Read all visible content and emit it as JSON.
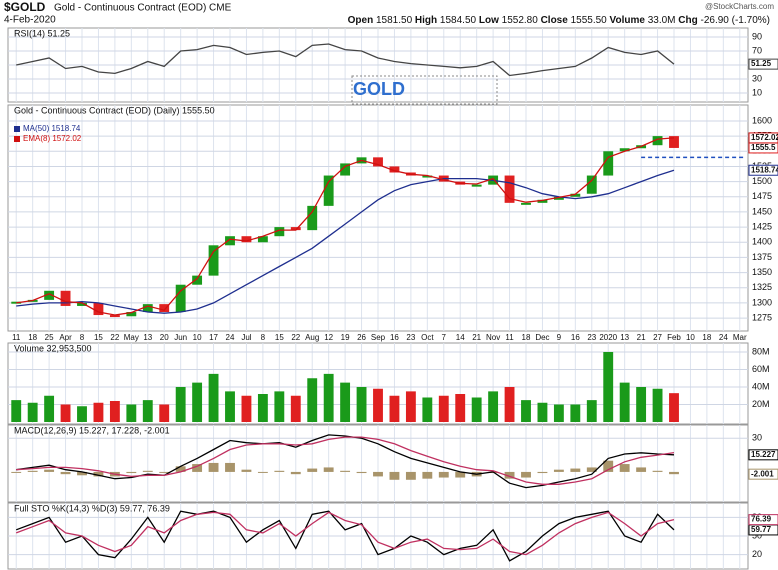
{
  "header": {
    "symbol": "$GOLD",
    "name": "Gold - Continuous Contract (EOD) CME",
    "date": "4-Feb-2020",
    "credit": "@StockCharts.com",
    "quote": [
      {
        "label": "Open",
        "value": "1581.50"
      },
      {
        "label": "High",
        "value": "1584.50"
      },
      {
        "label": "Low",
        "value": "1552.80"
      },
      {
        "label": "Close",
        "value": "1555.50"
      },
      {
        "label": "Volume",
        "value": "33.0M"
      },
      {
        "label": "Chg",
        "value": "-26.90 (-1.70%)"
      }
    ]
  },
  "annotation": "GOLD",
  "chart_data": [
    {
      "type": "line",
      "label": "RSI(14) 51.25",
      "ylim": [
        0,
        100
      ],
      "yticks": [
        90,
        70,
        50,
        30,
        10
      ],
      "grid": true,
      "series": [
        {
          "color": "#444444",
          "box": true,
          "values": [
            50,
            55,
            60,
            45,
            48,
            40,
            38,
            45,
            55,
            48,
            70,
            72,
            78,
            75,
            65,
            68,
            70,
            62,
            78,
            80,
            72,
            70,
            60,
            55,
            52,
            50,
            48,
            46,
            48,
            55,
            35,
            38,
            42,
            45,
            48,
            60,
            75,
            68,
            65,
            70,
            51.25,
            null,
            null,
            null,
            null
          ]
        }
      ]
    },
    {
      "type": "line",
      "label": "Gold - Continuous Contract (EOD) (Daily) 1555.50",
      "ylim": [
        1257,
        1623
      ],
      "grid": true,
      "hline": 1540,
      "yticks": [
        1275,
        1300,
        1325,
        1350,
        1375,
        1400,
        1425,
        1450,
        1475,
        1500,
        1525,
        1550,
        1575,
        1600
      ],
      "categories": [
        "11",
        "18",
        "25",
        "Apr",
        "8",
        "15",
        "22",
        "May",
        "13",
        "20",
        "Jun",
        "10",
        "17",
        "24",
        "Jul",
        "8",
        "15",
        "22",
        "Aug",
        "12",
        "19",
        "26",
        "Sep",
        "16",
        "23",
        "Oct",
        "7",
        "14",
        "21",
        "Nov",
        "11",
        "18",
        "Dec",
        "9",
        "16",
        "23",
        "2020",
        "13",
        "21",
        "27",
        "Feb",
        "10",
        "18",
        "24",
        "Mar"
      ],
      "series": [
        {
          "style": "candle",
          "up_color": "#1a9a1a",
          "down_color": "#e02020",
          "box": true,
          "values": [
            1302,
            1305,
            1320,
            1295,
            1300,
            1280,
            1278,
            1285,
            1298,
            1285,
            1330,
            1345,
            1395,
            1410,
            1400,
            1410,
            1425,
            1420,
            1460,
            1510,
            1530,
            1540,
            1525,
            1515,
            1510,
            1510,
            1500,
            1495,
            1495,
            1510,
            1465,
            1465,
            1470,
            1475,
            1480,
            1510,
            1550,
            1555,
            1560,
            1575,
            1555.5,
            null,
            null,
            null,
            null
          ]
        },
        {
          "name": "MA(50) 1518.74",
          "color": "#1f2f8f",
          "box": true,
          "values": [
            1295,
            1298,
            1300,
            1300,
            1302,
            1300,
            1295,
            1290,
            1285,
            1283,
            1285,
            1290,
            1300,
            1315,
            1330,
            1345,
            1360,
            1375,
            1390,
            1410,
            1430,
            1450,
            1470,
            1485,
            1495,
            1500,
            1505,
            1505,
            1505,
            1502,
            1498,
            1490,
            1480,
            1475,
            1472,
            1475,
            1480,
            1490,
            1500,
            1510,
            1518.74,
            null,
            null,
            null,
            null
          ]
        },
        {
          "name": "EMA(8) 1572.02",
          "color": "#d01010",
          "box": true,
          "values": [
            1300,
            1304,
            1315,
            1302,
            1300,
            1285,
            1280,
            1284,
            1295,
            1288,
            1320,
            1340,
            1385,
            1405,
            1402,
            1410,
            1420,
            1420,
            1450,
            1500,
            1525,
            1535,
            1528,
            1518,
            1512,
            1510,
            1503,
            1497,
            1496,
            1505,
            1472,
            1466,
            1469,
            1474,
            1479,
            1502,
            1540,
            1550,
            1558,
            1570,
            1572.02,
            null,
            null,
            null,
            null
          ]
        }
      ]
    },
    {
      "type": "bar",
      "label": "Volume 32,953,500",
      "ylim": [
        0,
        88000000
      ],
      "grid": true,
      "yticks": [
        {
          "value": 20000000,
          "label": "20M"
        },
        {
          "value": 40000000,
          "label": "40M"
        },
        {
          "value": 60000000,
          "label": "60M"
        },
        {
          "value": 80000000,
          "label": "80M"
        }
      ],
      "series": [
        {
          "style": "bar",
          "up_color": "#1a9a1a",
          "down_color": "#e02020",
          "values": [
            25000000,
            22000000,
            30000000,
            20000000,
            18000000,
            22000000,
            24000000,
            20000000,
            25000000,
            20000000,
            40000000,
            45000000,
            55000000,
            35000000,
            30000000,
            32000000,
            35000000,
            30000000,
            50000000,
            55000000,
            45000000,
            40000000,
            38000000,
            30000000,
            35000000,
            28000000,
            30000000,
            32000000,
            28000000,
            35000000,
            40000000,
            25000000,
            22000000,
            20000000,
            20000000,
            25000000,
            80000000,
            45000000,
            40000000,
            38000000,
            32953500,
            null,
            null,
            null,
            null
          ]
        }
      ]
    },
    {
      "type": "line",
      "label": "MACD(12,26,9) 15.227, 17.228, -2.001",
      "ylim": [
        -25,
        40
      ],
      "yticks": [
        30
      ],
      "grid": true,
      "series": [
        {
          "style": "bar",
          "color": "#a8946a",
          "box": true,
          "values": [
            0,
            1,
            2,
            -2,
            -3,
            -4,
            -4,
            -1,
            1,
            0,
            5,
            7,
            8,
            8,
            2,
            0,
            1,
            -2,
            3,
            4,
            1,
            -1,
            -4,
            -7,
            -7,
            -6,
            -5,
            -5,
            -4,
            -1,
            -6,
            -5,
            -1,
            2,
            3,
            4,
            10,
            7,
            4,
            1,
            -2.001,
            null,
            null,
            null,
            null
          ]
        },
        {
          "color": "#000000",
          "box": true,
          "values": [
            2,
            4,
            6,
            2,
            0,
            -3,
            -6,
            -5,
            -2,
            -3,
            5,
            12,
            20,
            28,
            26,
            25,
            26,
            22,
            28,
            33,
            32,
            30,
            25,
            18,
            12,
            8,
            4,
            0,
            -2,
            0,
            -10,
            -14,
            -12,
            -9,
            -6,
            -2,
            12,
            16,
            17,
            16,
            15.227,
            null,
            null,
            null,
            null
          ]
        },
        {
          "color": "#c03060",
          "values": [
            2,
            3,
            4,
            4,
            3,
            1,
            -2,
            -4,
            -3,
            -3,
            0,
            5,
            12,
            20,
            24,
            25,
            25,
            24,
            25,
            29,
            31,
            31,
            29,
            25,
            19,
            14,
            9,
            5,
            2,
            1,
            -4,
            -9,
            -11,
            -11,
            -9,
            -6,
            2,
            9,
            13,
            15,
            17.228,
            null,
            null,
            null,
            null
          ]
        }
      ]
    },
    {
      "type": "line",
      "label": "Full STO %K(14,3) %D(3) 59.77, 76.39",
      "ylim": [
        0,
        100
      ],
      "yticks": [
        80,
        50,
        20
      ],
      "grid": true,
      "series": [
        {
          "color": "#000000",
          "box": true,
          "values": [
            60,
            70,
            80,
            40,
            50,
            20,
            15,
            45,
            80,
            40,
            90,
            85,
            90,
            80,
            40,
            60,
            75,
            30,
            85,
            90,
            60,
            70,
            20,
            30,
            50,
            40,
            20,
            30,
            35,
            60,
            10,
            25,
            50,
            70,
            80,
            85,
            90,
            50,
            40,
            85,
            59.77,
            null,
            null,
            null,
            null
          ]
        },
        {
          "color": "#c03060",
          "box": true,
          "values": [
            55,
            65,
            75,
            55,
            50,
            35,
            25,
            35,
            65,
            55,
            75,
            85,
            88,
            85,
            60,
            55,
            70,
            50,
            70,
            88,
            75,
            68,
            40,
            30,
            40,
            45,
            30,
            28,
            30,
            45,
            25,
            20,
            35,
            55,
            70,
            80,
            88,
            70,
            50,
            70,
            76.39,
            null,
            null,
            null,
            null
          ]
        }
      ]
    }
  ]
}
